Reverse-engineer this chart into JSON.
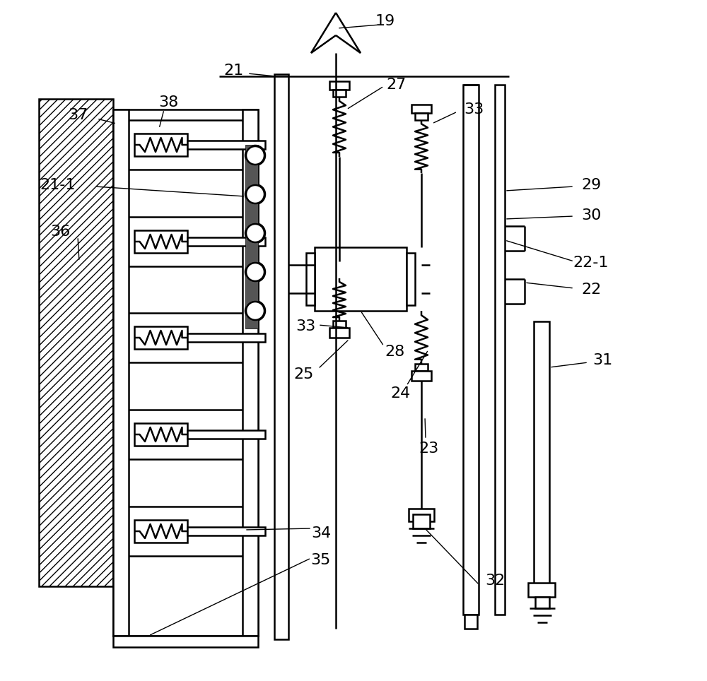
{
  "bg_color": "#ffffff",
  "line_color": "#000000",
  "lw": 1.8,
  "thin_lw": 1.0,
  "fontsize": 16
}
